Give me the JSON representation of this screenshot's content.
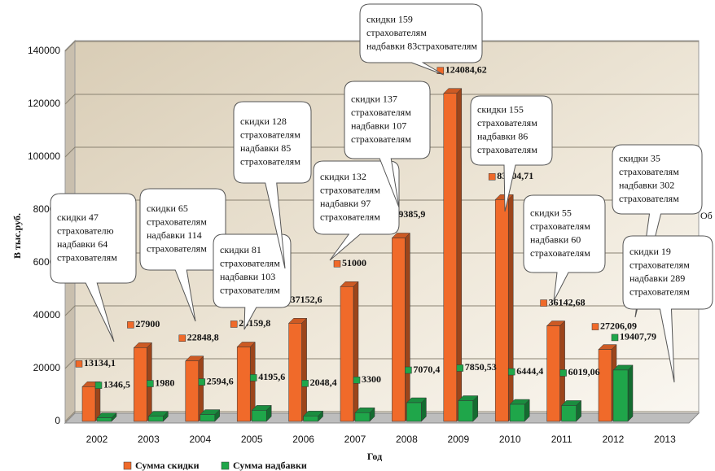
{
  "chart_data": {
    "type": "bar3d",
    "y_axis_label": "В тыс.руб.",
    "x_axis_label": "Год",
    "categories": [
      "2002",
      "2003",
      "2004",
      "2005",
      "2006",
      "2007",
      "2008",
      "2009",
      "2010",
      "2011",
      "2012",
      "2013"
    ],
    "series": [
      {
        "name": "Сумма скидки",
        "color": "#f06a2a",
        "values": [
          13134.1,
          27900,
          22848.8,
          28159.8,
          37152.6,
          51000,
          69385.9,
          124084.62,
          83904.71,
          36142.68,
          27206.09,
          null
        ],
        "value_labels": [
          "13134,1",
          "27900",
          "22848,8",
          "28159,8",
          "37152,6",
          "51000",
          "69385,9",
          "124084,62",
          "83904,71",
          "36142,68",
          "27206,09",
          null
        ]
      },
      {
        "name": "Сумма надбавки",
        "color": "#1fa64a",
        "values": [
          1346.5,
          1980,
          2594.6,
          4195.6,
          2048.4,
          3300,
          7070.4,
          7850.53,
          6444.4,
          6019.06,
          19407.79,
          null
        ],
        "value_labels": [
          "1346,5",
          "1980",
          "2594,6",
          "4195,6",
          "2048,4",
          "3300",
          "7070,4",
          "7850,53",
          "6444,4",
          "6019,06",
          "19407,79",
          null
        ]
      }
    ],
    "ylim": [
      0,
      140000
    ],
    "yticks": [
      0,
      20000,
      40000,
      60000,
      80000,
      100000,
      120000,
      140000
    ],
    "legend": "bottom",
    "annotations": [
      [
        "скидки 47",
        "страхователю",
        "надбавки 64",
        "страхователям"
      ],
      [
        "скидки 65",
        "страхователям",
        "надбавки 114",
        "страхователям"
      ],
      [
        "скидки 81",
        "страхователям",
        "надбавки 103",
        "страхователям"
      ],
      [
        "скидки 128",
        "страхователям",
        "надбавки 85",
        "страхователям"
      ],
      [
        "скидки 132",
        "страхователям",
        "надбавки 97",
        "страхователям"
      ],
      [
        "скидки 137",
        "страхователям",
        "надбавки 107",
        "страхователям"
      ],
      [
        "скидки 159",
        "страхователям",
        "надбавки 83страхователям"
      ],
      [
        "скидки 155",
        "страхователям",
        "надбавки 86",
        "страхователям"
      ],
      [
        "скидки 55",
        "страхователям",
        "надбавки 60",
        "страхователям"
      ],
      [
        "скидки 35",
        "страхователям",
        "надбавки 302",
        "страхователям"
      ],
      [
        "скидки 19",
        "страхователям",
        "надбавки 289",
        "страхователям"
      ]
    ],
    "edge_text": "Об"
  }
}
